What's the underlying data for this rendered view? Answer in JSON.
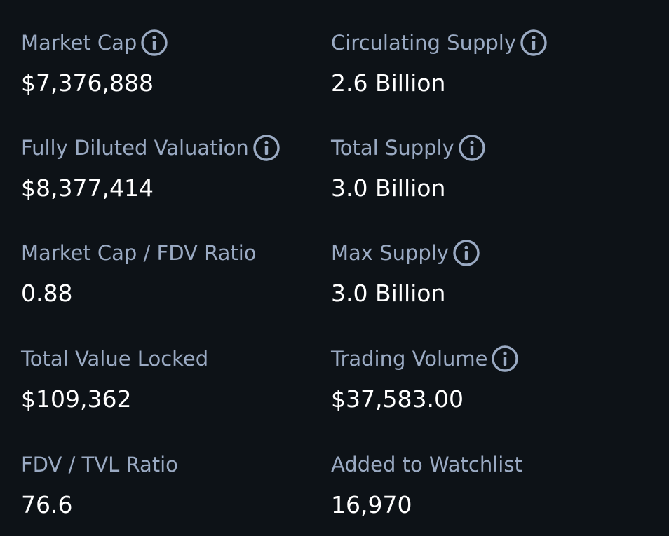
{
  "colors": {
    "background": "#0d1217",
    "label": "#9aaac3",
    "value": "#ffffff"
  },
  "stats": {
    "market_cap": {
      "label": "Market Cap",
      "value": "$7,376,888",
      "icon": "info-icon"
    },
    "circulating_supply": {
      "label": "Circulating Supply",
      "value": "2.6 Billion",
      "icon": "info-icon"
    },
    "fully_diluted_valuation": {
      "label": "Fully Diluted Valuation",
      "value": "$8,377,414",
      "icon": "info-icon"
    },
    "total_supply": {
      "label": "Total Supply",
      "value": "3.0 Billion",
      "icon": "info-icon"
    },
    "market_cap_fdv_ratio": {
      "label": "Market Cap / FDV Ratio",
      "value": "0.88"
    },
    "max_supply": {
      "label": "Max Supply",
      "value": "3.0 Billion",
      "icon": "info-icon"
    },
    "total_value_locked": {
      "label": "Total Value Locked",
      "value": "$109,362"
    },
    "trading_volume": {
      "label": "Trading Volume",
      "value": "$37,583.00",
      "icon": "info-icon"
    },
    "fdv_tvl_ratio": {
      "label": "FDV / TVL Ratio",
      "value": "76.6"
    },
    "added_to_watchlist": {
      "label": "Added to Watchlist",
      "value": "16,970"
    }
  }
}
